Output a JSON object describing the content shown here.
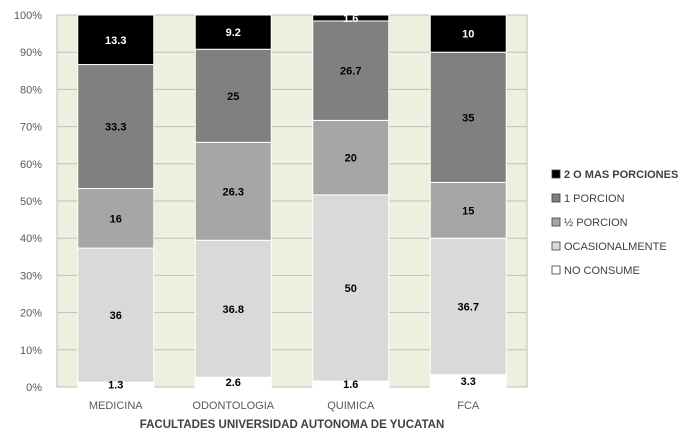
{
  "chart_data": {
    "type": "bar",
    "stacked": true,
    "percent": true,
    "categories": [
      "MEDICINA",
      "ODONTOLOGIA",
      "QUIMICA",
      "FCA"
    ],
    "series": [
      {
        "name": "NO CONSUME",
        "color": "#ffffff",
        "label_color": "#000000",
        "values": [
          1.3,
          2.6,
          1.6,
          3.3
        ]
      },
      {
        "name": "OCASIONALMENTE",
        "color": "#d9d9d9",
        "label_color": "#000000",
        "values": [
          36,
          36.8,
          50,
          36.7
        ]
      },
      {
        "name": "½  PORCION",
        "color": "#a6a6a6",
        "label_color": "#000000",
        "values": [
          16,
          26.3,
          20,
          15
        ]
      },
      {
        "name": "1 PORCION",
        "color": "#808080",
        "label_color": "#000000",
        "values": [
          33.3,
          25,
          26.7,
          35
        ]
      },
      {
        "name": "2 O MAS PORCIONES",
        "color": "#000000",
        "label_color": "#ffffff",
        "values": [
          13.3,
          9.2,
          1.6,
          10
        ]
      }
    ],
    "labels": [
      [
        "1.3",
        "2.6",
        "1.6",
        "3.3"
      ],
      [
        "36",
        "36.8",
        "50",
        "36.7"
      ],
      [
        "16",
        "26.3",
        "20",
        "15"
      ],
      [
        "33.3",
        "25",
        "26.7",
        "35"
      ],
      [
        "13.3",
        "9.2",
        "1.6",
        "10"
      ]
    ],
    "xlabel": "FACULTADES UNIVERSIDAD AUTONOMA DE YUCATAN",
    "ylabel": "",
    "ylim": [
      0,
      100
    ],
    "yticks": [
      "0%",
      "10%",
      "20%",
      "30%",
      "40%",
      "50%",
      "60%",
      "70%",
      "80%",
      "90%",
      "100%"
    ],
    "grid": true,
    "plot_background": "#ebf1de",
    "legend_position": "right"
  }
}
